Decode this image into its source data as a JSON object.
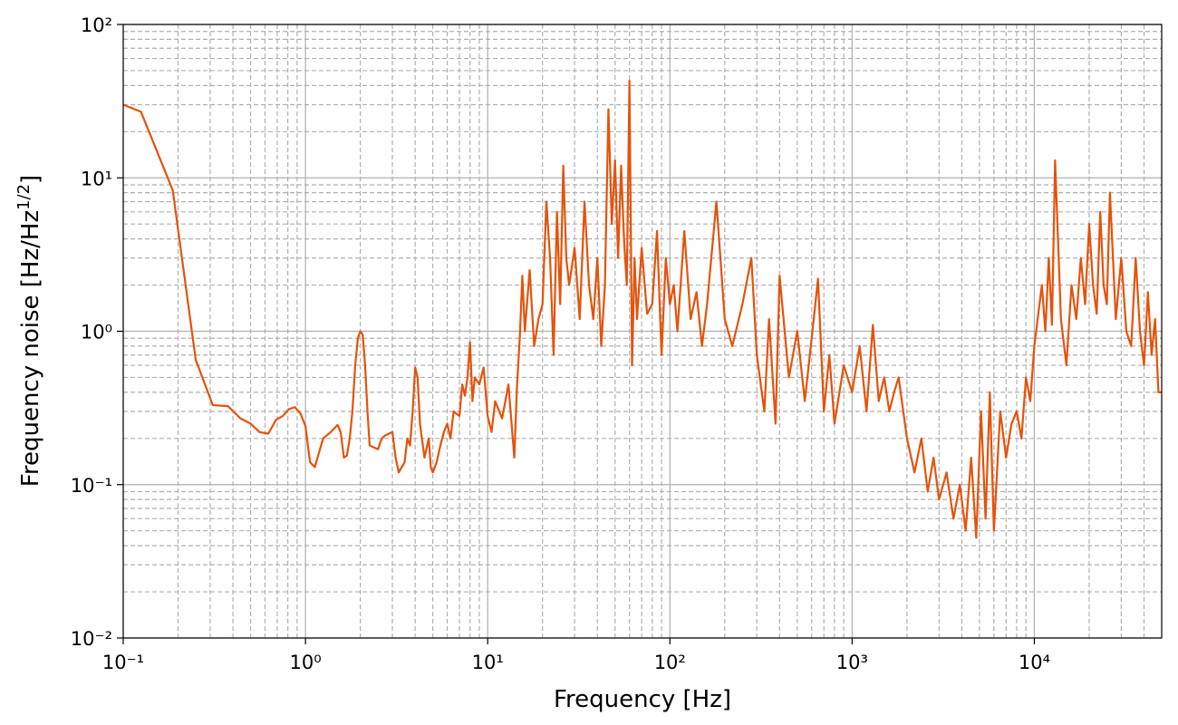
{
  "chart_data": {
    "type": "line",
    "xlabel": "Frequency [Hz]",
    "ylabel": {
      "text": "Frequency noise [Hz/Hz",
      "superscript": "1/2",
      "suffix": "]"
    },
    "x": [
      0.1,
      0.125,
      0.187,
      0.25,
      0.31,
      0.375,
      0.44,
      0.5,
      0.56,
      0.625,
      0.69,
      0.75,
      0.81,
      0.875,
      0.94,
      1.0,
      1.06,
      1.125,
      1.25,
      1.375,
      1.5,
      1.56,
      1.625,
      1.69,
      1.75,
      1.81,
      1.875,
      1.94,
      2.0,
      2.06,
      2.125,
      2.19,
      2.25,
      2.5,
      2.625,
      2.75,
      3.0,
      3.125,
      3.25,
      3.5,
      3.625,
      3.75,
      3.875,
      4.0,
      4.125,
      4.25,
      4.5,
      4.75,
      4.875,
      5.0,
      5.25,
      5.5,
      5.75,
      6.0,
      6.25,
      6.5,
      7,
      7.25,
      7.5,
      7.75,
      8,
      8.25,
      8.5,
      9,
      9.5,
      10,
      10.5,
      11,
      12,
      13,
      14,
      14.5,
      15,
      15.5,
      16,
      17,
      18,
      19,
      20,
      21,
      22,
      23,
      24,
      25,
      26,
      27,
      28,
      30,
      32,
      34,
      36,
      38,
      40,
      42,
      44,
      46,
      48,
      50,
      52,
      54,
      56,
      58,
      60,
      62,
      64,
      66,
      70,
      75,
      80,
      85,
      90,
      95,
      100,
      105,
      110,
      120,
      130,
      140,
      150,
      160,
      180,
      200,
      220,
      250,
      280,
      300,
      330,
      350,
      380,
      400,
      450,
      500,
      550,
      600,
      650,
      700,
      750,
      800,
      900,
      1000,
      1100,
      1200,
      1300,
      1400,
      1500,
      1600,
      1700,
      1800,
      2000,
      2200,
      2400,
      2600,
      2800,
      3000,
      3300,
      3600,
      3900,
      4200,
      4500,
      4800,
      5100,
      5400,
      5700,
      6000,
      6500,
      7000,
      7500,
      8000,
      8500,
      9000,
      9500,
      10000,
      11000,
      11500,
      12000,
      12500,
      13000,
      14000,
      15000,
      16000,
      17000,
      18000,
      19000,
      20000,
      21000,
      22000,
      23000,
      24000,
      25000,
      26000,
      28000,
      30000,
      32000,
      34000,
      36000,
      38000,
      40000,
      42000,
      44000,
      46000,
      48000,
      50000
    ],
    "series": [
      {
        "color": "#e6520a",
        "values": [
          30,
          27,
          8.3,
          0.65,
          0.33,
          0.325,
          0.27,
          0.25,
          0.22,
          0.215,
          0.265,
          0.28,
          0.31,
          0.32,
          0.29,
          0.24,
          0.14,
          0.13,
          0.2,
          0.22,
          0.245,
          0.22,
          0.15,
          0.155,
          0.2,
          0.3,
          0.6,
          0.9,
          1.0,
          0.95,
          0.6,
          0.3,
          0.18,
          0.17,
          0.2,
          0.21,
          0.22,
          0.15,
          0.12,
          0.14,
          0.2,
          0.18,
          0.3,
          0.58,
          0.5,
          0.25,
          0.15,
          0.2,
          0.13,
          0.12,
          0.14,
          0.18,
          0.22,
          0.25,
          0.2,
          0.3,
          0.28,
          0.45,
          0.38,
          0.5,
          0.85,
          0.35,
          0.5,
          0.45,
          0.58,
          0.28,
          0.22,
          0.35,
          0.27,
          0.45,
          0.15,
          0.45,
          0.9,
          2.3,
          1.0,
          2.5,
          0.8,
          1.2,
          1.5,
          7,
          3,
          0.7,
          6,
          1.5,
          12,
          3,
          2,
          3.5,
          1.2,
          7,
          2,
          1.2,
          3,
          0.8,
          2,
          28,
          5,
          13,
          3,
          12,
          4,
          2,
          43,
          0.6,
          3,
          1.2,
          3.5,
          1.3,
          1.5,
          4.5,
          0.7,
          3,
          1.5,
          2,
          1,
          4.5,
          1.2,
          1.8,
          0.8,
          1.5,
          7,
          1.2,
          0.8,
          1.5,
          3,
          0.7,
          0.3,
          1.2,
          0.25,
          2.3,
          0.5,
          1,
          0.35,
          0.9,
          2.2,
          0.3,
          0.7,
          0.25,
          0.6,
          0.4,
          0.8,
          0.3,
          1.1,
          0.35,
          0.5,
          0.3,
          0.4,
          0.5,
          0.2,
          0.12,
          0.2,
          0.09,
          0.15,
          0.08,
          0.12,
          0.06,
          0.1,
          0.05,
          0.15,
          0.045,
          0.3,
          0.06,
          0.4,
          0.05,
          0.3,
          0.15,
          0.25,
          0.3,
          0.2,
          0.5,
          0.35,
          0.8,
          2,
          1.0,
          3,
          1.1,
          13,
          1.2,
          0.6,
          2,
          1.2,
          3,
          1.5,
          5,
          2,
          1.3,
          6,
          2,
          1.5,
          8,
          1.2,
          3,
          1.0,
          0.8,
          3,
          1,
          0.6,
          1.8,
          0.7,
          1.2,
          0.4,
          0.4
        ]
      }
    ],
    "xlim": [
      0.1,
      50000
    ],
    "ylim": [
      0.01,
      100
    ],
    "xscale": "log",
    "yscale": "log",
    "xticks": [
      {
        "value": 0.1,
        "label": "10⁻¹"
      },
      {
        "value": 1,
        "label": "10⁰"
      },
      {
        "value": 10,
        "label": "10¹"
      },
      {
        "value": 100,
        "label": "10²"
      },
      {
        "value": 1000,
        "label": "10³"
      },
      {
        "value": 10000,
        "label": "10⁴"
      }
    ],
    "yticks": [
      {
        "value": 0.01,
        "label": "10⁻²"
      },
      {
        "value": 0.1,
        "label": "10⁻¹"
      },
      {
        "value": 1,
        "label": "10⁰"
      },
      {
        "value": 10,
        "label": "10¹"
      },
      {
        "value": 100,
        "label": "10²"
      }
    ],
    "grid": true
  }
}
